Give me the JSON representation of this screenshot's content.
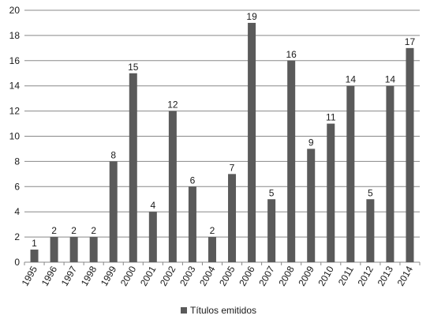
{
  "chart_data": {
    "type": "bar",
    "categories": [
      "1995",
      "1996",
      "1997",
      "1998",
      "1999",
      "2000",
      "2001",
      "2002",
      "2003",
      "2004",
      "2005",
      "2006",
      "2007",
      "2008",
      "2009",
      "2010",
      "2011",
      "2012",
      "2013",
      "2014"
    ],
    "series": [
      {
        "name": "Títulos emitidos",
        "values": [
          1,
          2,
          2,
          2,
          8,
          15,
          4,
          12,
          6,
          2,
          7,
          19,
          5,
          16,
          9,
          11,
          14,
          5,
          14,
          17
        ],
        "color": "#5a5a5a"
      }
    ],
    "ylim": [
      0,
      20
    ],
    "yticks": [
      0,
      2,
      4,
      6,
      8,
      10,
      12,
      14,
      16,
      18,
      20
    ],
    "grid": true,
    "legend_position": "bottom",
    "data_labels": true,
    "colors": {
      "grid": "#888888",
      "axis": "#888888",
      "bar": "#5a5a5a"
    }
  }
}
